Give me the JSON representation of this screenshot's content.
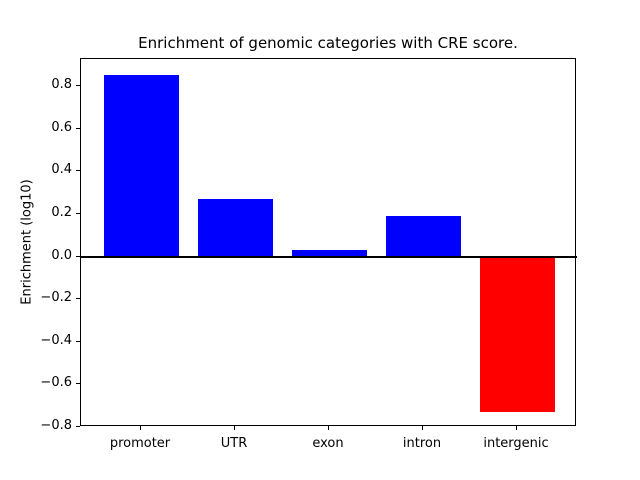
{
  "figure": {
    "background": "#ffffff"
  },
  "chart_data": {
    "type": "bar",
    "title": "Enrichment of genomic categories with CRE score.",
    "xlabel": "",
    "ylabel": "Enrichment (log10)",
    "categories": [
      "promoter",
      "UTR",
      "exon",
      "intron",
      "intergenic"
    ],
    "values": [
      0.855,
      0.27,
      0.03,
      0.19,
      -0.73
    ],
    "bar_colors": [
      "#0000ff",
      "#0000ff",
      "#0000ff",
      "#0000ff",
      "#ff0000"
    ],
    "positive_color": "#0000ff",
    "negative_color": "#ff0000",
    "axis_color": "#000000",
    "ylim": [
      -0.801,
      0.928
    ],
    "yticks": [
      -0.8,
      -0.6,
      -0.4,
      -0.2,
      0.0,
      0.2,
      0.4,
      0.6,
      0.8
    ],
    "ytick_labels": [
      "−0.8",
      "−0.6",
      "−0.4",
      "−0.2",
      "0.0",
      "0.2",
      "0.4",
      "0.6",
      "0.8"
    ],
    "grid": false,
    "legend": null,
    "zero_line": true,
    "bar_width_fraction": 0.8
  }
}
